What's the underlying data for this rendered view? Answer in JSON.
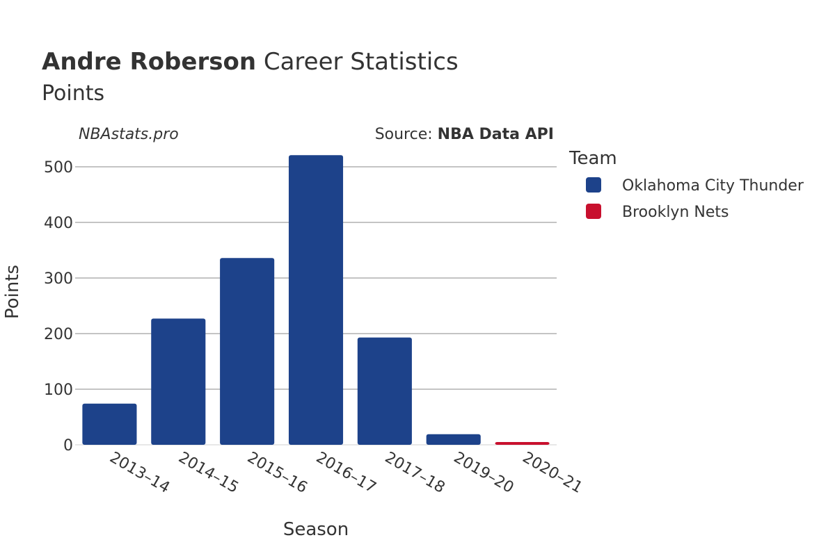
{
  "header": {
    "player_name": "Andre Roberson",
    "title_rest": " Career Statistics",
    "subtitle": "Points"
  },
  "credits": {
    "site": "NBAstats.pro",
    "source_prefix": "Source: ",
    "source_name": "NBA Data API"
  },
  "legend": {
    "title": "Team",
    "items": [
      {
        "label": "Oklahoma City Thunder",
        "color": "#1d428a"
      },
      {
        "label": "Brooklyn Nets",
        "color": "#c8102e"
      }
    ]
  },
  "chart_data": {
    "type": "bar",
    "title": "Andre Roberson Career Statistics",
    "subtitle": "Points",
    "xlabel": "Season",
    "ylabel": "Points",
    "ylim": [
      0,
      540
    ],
    "yticks": [
      0,
      100,
      200,
      300,
      400,
      500
    ],
    "grid": true,
    "legend_position": "right",
    "categories": [
      "2013–14",
      "2014–15",
      "2015–16",
      "2016–17",
      "2017–18",
      "2019–20",
      "2020–21"
    ],
    "series": [
      {
        "name": "Oklahoma City Thunder",
        "color": "#1d428a",
        "values": [
          74,
          227,
          336,
          521,
          193,
          19,
          null
        ]
      },
      {
        "name": "Brooklyn Nets",
        "color": "#c8102e",
        "values": [
          null,
          null,
          null,
          null,
          null,
          null,
          5
        ]
      }
    ]
  }
}
